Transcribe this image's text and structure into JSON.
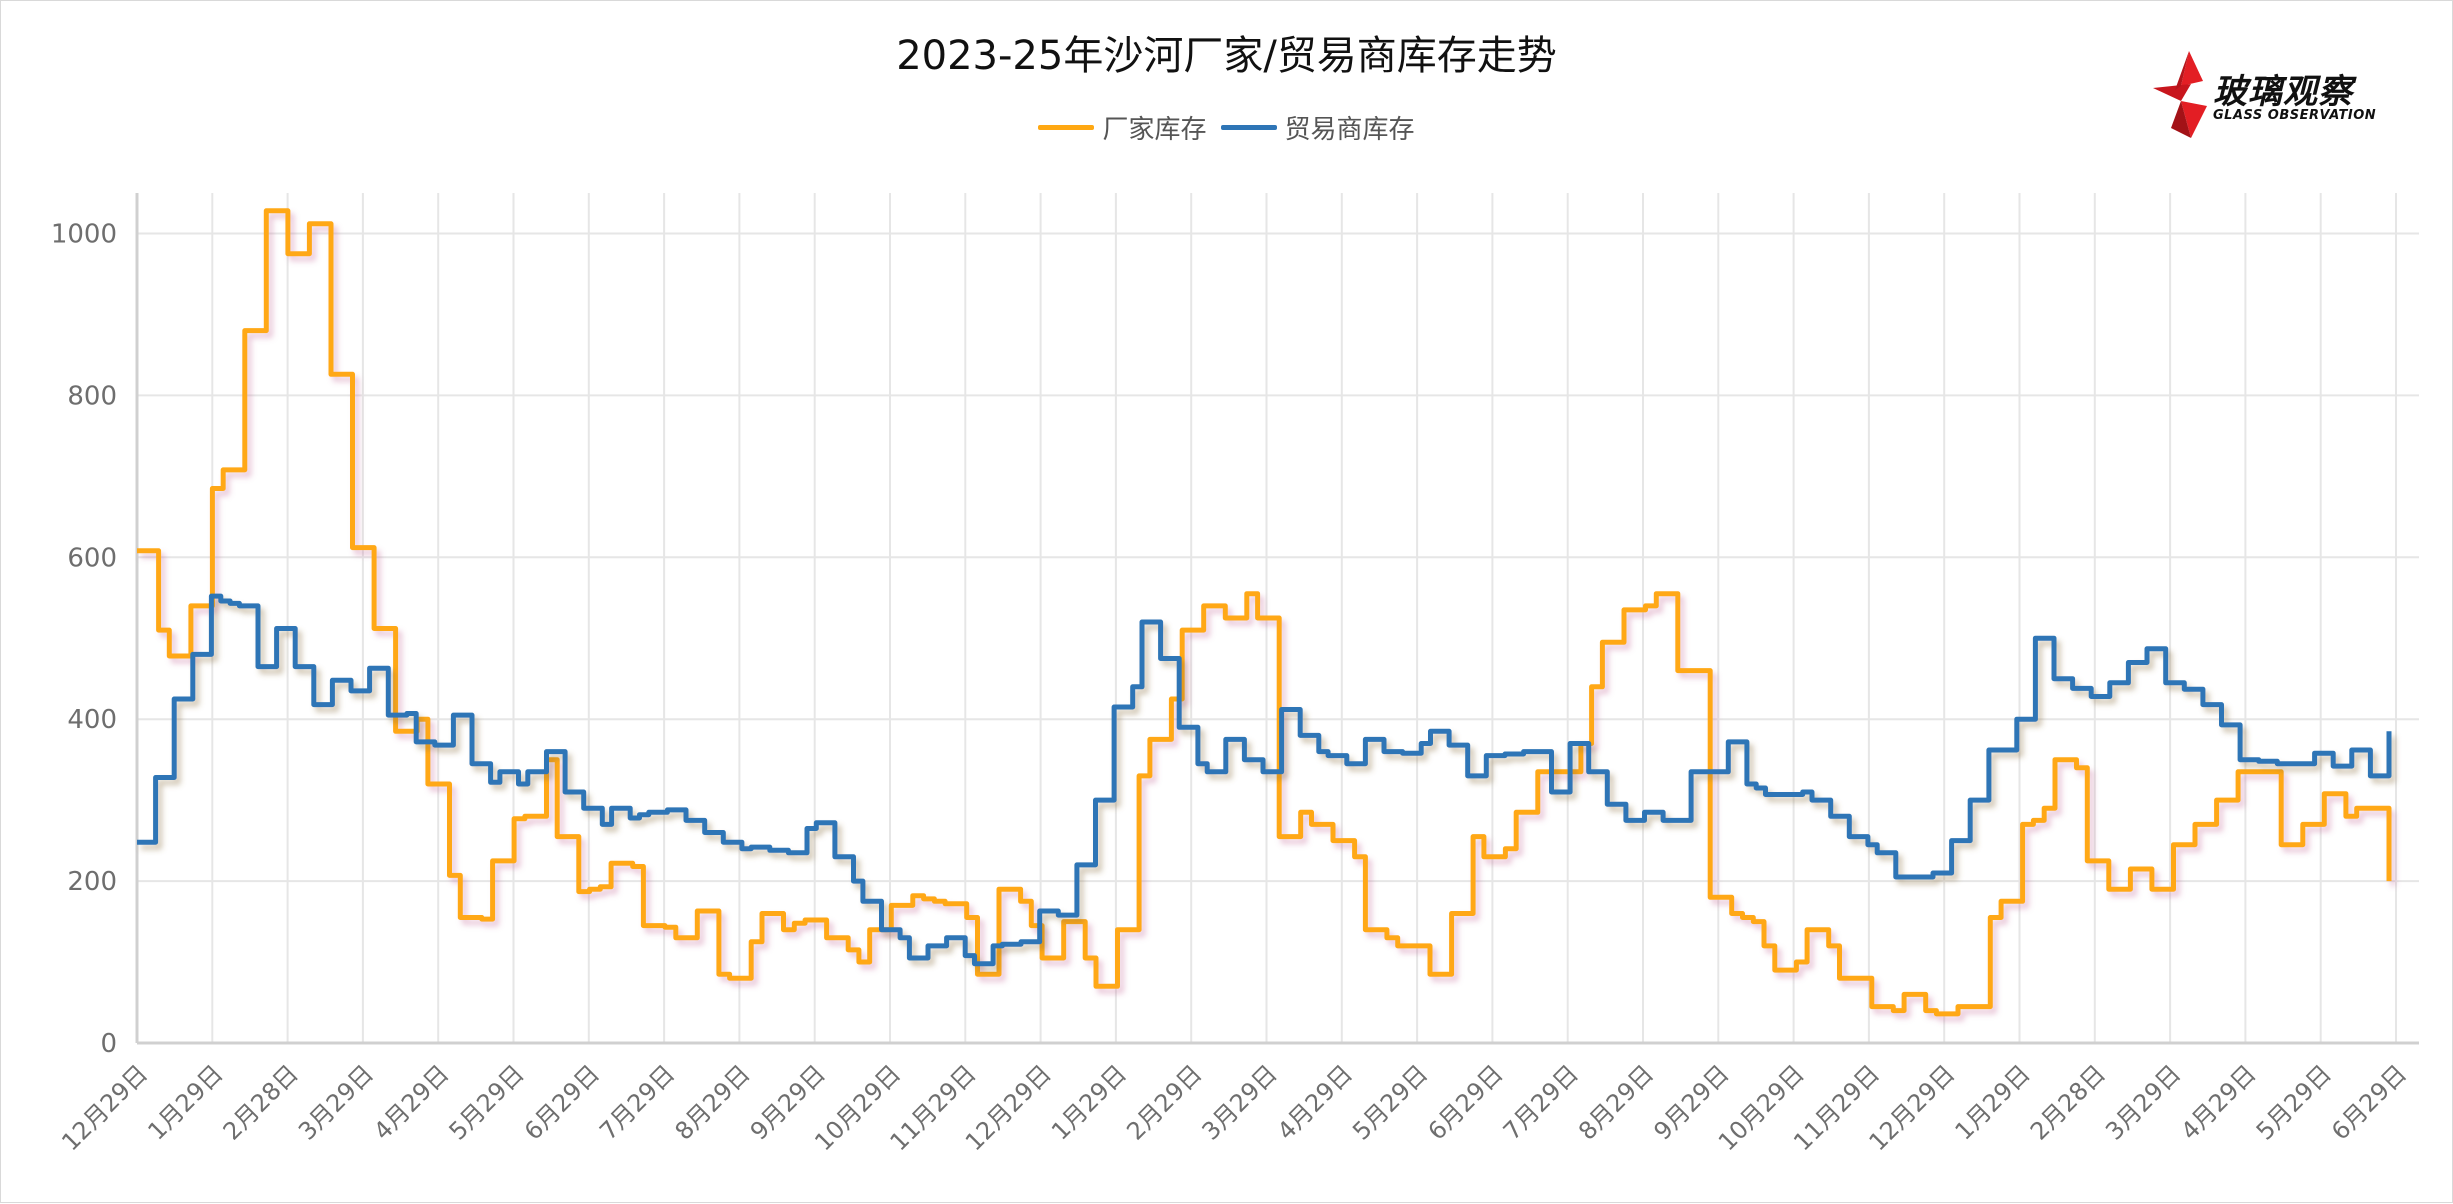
{
  "chart_data": {
    "type": "line",
    "step": true,
    "title": "2023-25年沙河厂家/贸易商库存走势",
    "xlabel": "",
    "ylabel": "",
    "ylim": [
      0,
      1050
    ],
    "yticks": [
      0,
      200,
      400,
      600,
      800,
      1000
    ],
    "grid": true,
    "legend_position": "top-center",
    "x_tick_labels": [
      "12月29日",
      "1月29日",
      "2月28日",
      "3月29日",
      "4月29日",
      "5月29日",
      "6月29日",
      "7月29日",
      "8月29日",
      "9月29日",
      "10月29日",
      "11月29日",
      "12月29日",
      "1月29日",
      "2月29日",
      "3月29日",
      "4月29日",
      "5月29日",
      "6月29日",
      "7月29日",
      "8月29日",
      "9月29日",
      "10月29日",
      "11月29日",
      "12月29日",
      "1月29日",
      "2月28日",
      "3月29日",
      "4月29日",
      "5月29日",
      "6月29日"
    ],
    "x_period": "weekly, 2023-12-29 to 2025-06-27 (approx.)",
    "series": [
      {
        "name": "厂家库存",
        "color": "#FFA812",
        "values": [
          608,
          608,
          510,
          478,
          478,
          540,
          540,
          685,
          708,
          708,
          880,
          880,
          1028,
          1028,
          975,
          975,
          1012,
          1012,
          826,
          826,
          612,
          612,
          512,
          512,
          385,
          385,
          400,
          320,
          320,
          207,
          155,
          155,
          153,
          225,
          225,
          277,
          280,
          280,
          350,
          255,
          255,
          187,
          190,
          193,
          222,
          222,
          218,
          145,
          145,
          143,
          130,
          130,
          163,
          163,
          85,
          80,
          80,
          125,
          160,
          160,
          140,
          148,
          152,
          152,
          130,
          130,
          115,
          100,
          140,
          140,
          170,
          170,
          182,
          178,
          175,
          172,
          172,
          155,
          85,
          85,
          190,
          190,
          175,
          145,
          105,
          105,
          150,
          150,
          105,
          70,
          70,
          140,
          140,
          330,
          375,
          375,
          425,
          510,
          510,
          540,
          540,
          525,
          525,
          555,
          525,
          525,
          255,
          255,
          285,
          270,
          270,
          250,
          250,
          230,
          140,
          140,
          130,
          120,
          120,
          120,
          85,
          85,
          160,
          160,
          255,
          230,
          230,
          240,
          285,
          285,
          335,
          335,
          335,
          335,
          370,
          440,
          495,
          495,
          535,
          535,
          540,
          555,
          555,
          460,
          460,
          460,
          180,
          180,
          160,
          155,
          150,
          120,
          90,
          90,
          100,
          140,
          140,
          120,
          80,
          80,
          80,
          45,
          45,
          40,
          60,
          60,
          40,
          36,
          36,
          45,
          45,
          45,
          155,
          175,
          175,
          270,
          275,
          290,
          350,
          350,
          340,
          225,
          225,
          190,
          190,
          215,
          215,
          190,
          190,
          245,
          245,
          270,
          270,
          300,
          300,
          335,
          335,
          335,
          335,
          245,
          245,
          270,
          270,
          308,
          308,
          280,
          290,
          290,
          290,
          200
        ]
      },
      {
        "name": "贸易商库存",
        "color": "#2E75B6",
        "values": [
          248,
          248,
          328,
          328,
          425,
          425,
          480,
          480,
          552,
          546,
          543,
          540,
          540,
          465,
          465,
          512,
          512,
          465,
          465,
          418,
          418,
          448,
          448,
          435,
          435,
          463,
          463,
          405,
          405,
          407,
          372,
          372,
          368,
          368,
          405,
          405,
          345,
          345,
          322,
          335,
          335,
          320,
          335,
          335,
          360,
          360,
          310,
          310,
          290,
          290,
          270,
          290,
          290,
          278,
          282,
          285,
          285,
          288,
          288,
          275,
          275,
          260,
          260,
          248,
          248,
          240,
          242,
          242,
          238,
          238,
          235,
          235,
          265,
          272,
          272,
          230,
          230,
          200,
          175,
          175,
          140,
          140,
          130,
          105,
          105,
          120,
          120,
          130,
          130,
          108,
          98,
          98,
          120,
          122,
          122,
          125,
          125,
          163,
          163,
          158,
          158,
          220,
          220,
          300,
          300,
          415,
          415,
          440,
          520,
          520,
          475,
          475,
          390,
          390,
          345,
          335,
          335,
          375,
          375,
          350,
          350,
          335,
          335,
          412,
          412,
          380,
          380,
          360,
          355,
          355,
          345,
          345,
          375,
          375,
          360,
          360,
          358,
          358,
          370,
          385,
          385,
          368,
          368,
          330,
          330,
          355,
          355,
          357,
          357,
          360,
          360,
          360,
          310,
          310,
          370,
          370,
          335,
          335,
          295,
          295,
          275,
          275,
          285,
          285,
          275,
          275,
          275,
          335,
          335,
          335,
          335,
          372,
          372,
          320,
          315,
          307,
          307,
          307,
          307,
          310,
          300,
          300,
          280,
          280,
          255,
          255,
          245,
          235,
          235,
          205,
          205,
          205,
          205,
          210,
          210,
          250,
          250,
          300,
          300,
          362,
          362,
          362,
          400,
          400,
          500,
          500,
          450,
          450,
          438,
          438,
          428,
          428,
          445,
          445,
          470,
          470,
          487,
          487,
          445,
          445,
          437,
          437,
          418,
          418,
          393,
          393,
          350,
          350,
          348,
          348,
          345,
          345,
          345,
          345,
          358,
          358,
          342,
          342,
          362,
          362,
          330,
          330,
          385
        ]
      }
    ]
  },
  "header": {
    "title": "2023-25年沙河厂家/贸易商库存走势"
  },
  "legend": {
    "items": [
      {
        "label": "厂家库存",
        "color": "#FFA812"
      },
      {
        "label": "贸易商库存",
        "color": "#2E75B6"
      }
    ]
  },
  "logo": {
    "cn": "玻璃观察",
    "en": "GLASS OBSERVATION",
    "color": "#E31E24"
  }
}
